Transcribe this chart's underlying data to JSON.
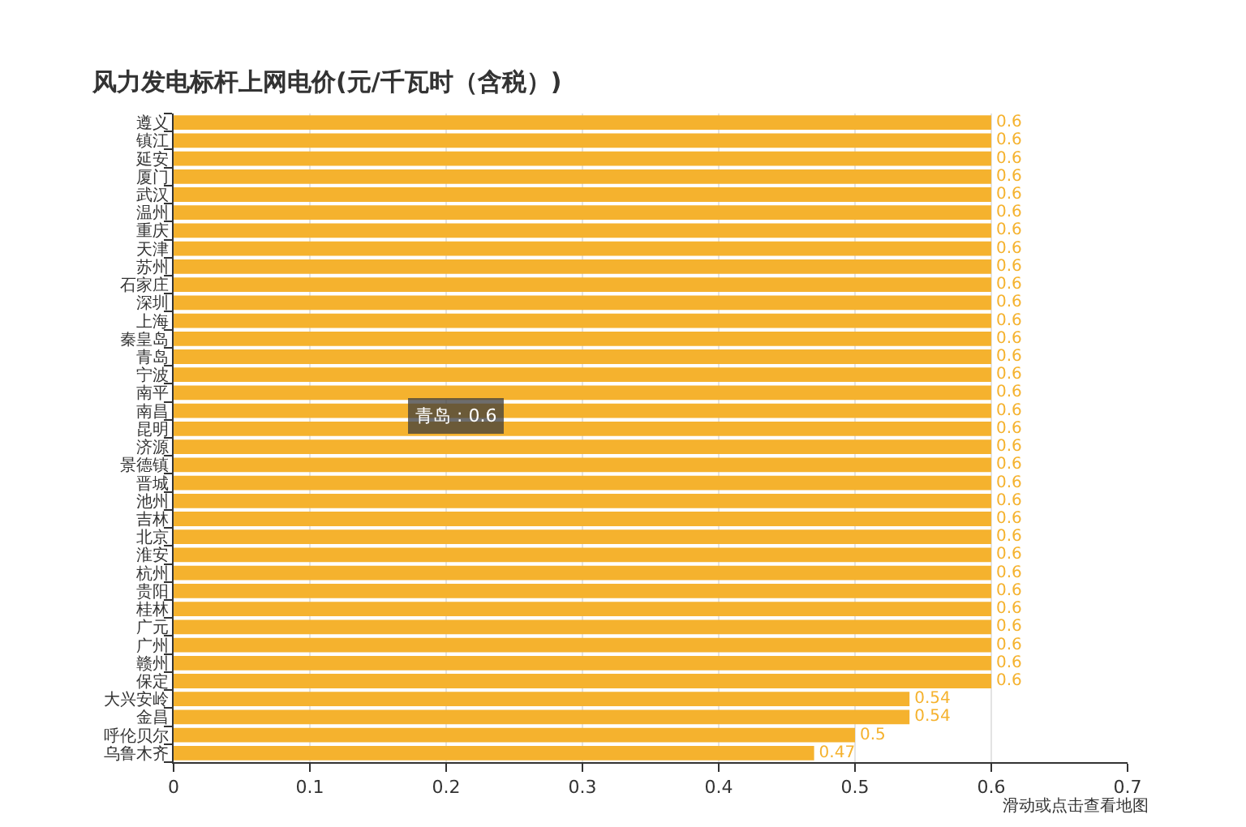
{
  "chart_data": {
    "type": "bar",
    "orientation": "horizontal",
    "title": "风力发电标杆上网电价(元/千瓦时（含税）)",
    "categories": [
      "遵义",
      "镇江",
      "延安",
      "厦门",
      "武汉",
      "温州",
      "重庆",
      "天津",
      "苏州",
      "石家庄",
      "深圳",
      "上海",
      "秦皇岛",
      "青岛",
      "宁波",
      "南平",
      "南昌",
      "昆明",
      "济源",
      "景德镇",
      "晋城",
      "池州",
      "吉林",
      "北京",
      "淮安",
      "杭州",
      "贵阳",
      "桂林",
      "广元",
      "广州",
      "赣州",
      "保定",
      "大兴安岭",
      "金昌",
      "呼伦贝尔",
      "乌鲁木齐"
    ],
    "values": [
      0.6,
      0.6,
      0.6,
      0.6,
      0.6,
      0.6,
      0.6,
      0.6,
      0.6,
      0.6,
      0.6,
      0.6,
      0.6,
      0.6,
      0.6,
      0.6,
      0.6,
      0.6,
      0.6,
      0.6,
      0.6,
      0.6,
      0.6,
      0.6,
      0.6,
      0.6,
      0.6,
      0.6,
      0.6,
      0.6,
      0.6,
      0.6,
      0.54,
      0.54,
      0.5,
      0.47
    ],
    "color": "#f5b22e",
    "xlim": [
      0,
      0.7
    ],
    "xticks": [
      0,
      0.1,
      0.2,
      0.3,
      0.4,
      0.5,
      0.6,
      0.7
    ],
    "grid": "x",
    "data_labels": true,
    "annotations": [
      "青岛 : 0.6",
      "滑动或点击查看地图"
    ]
  }
}
